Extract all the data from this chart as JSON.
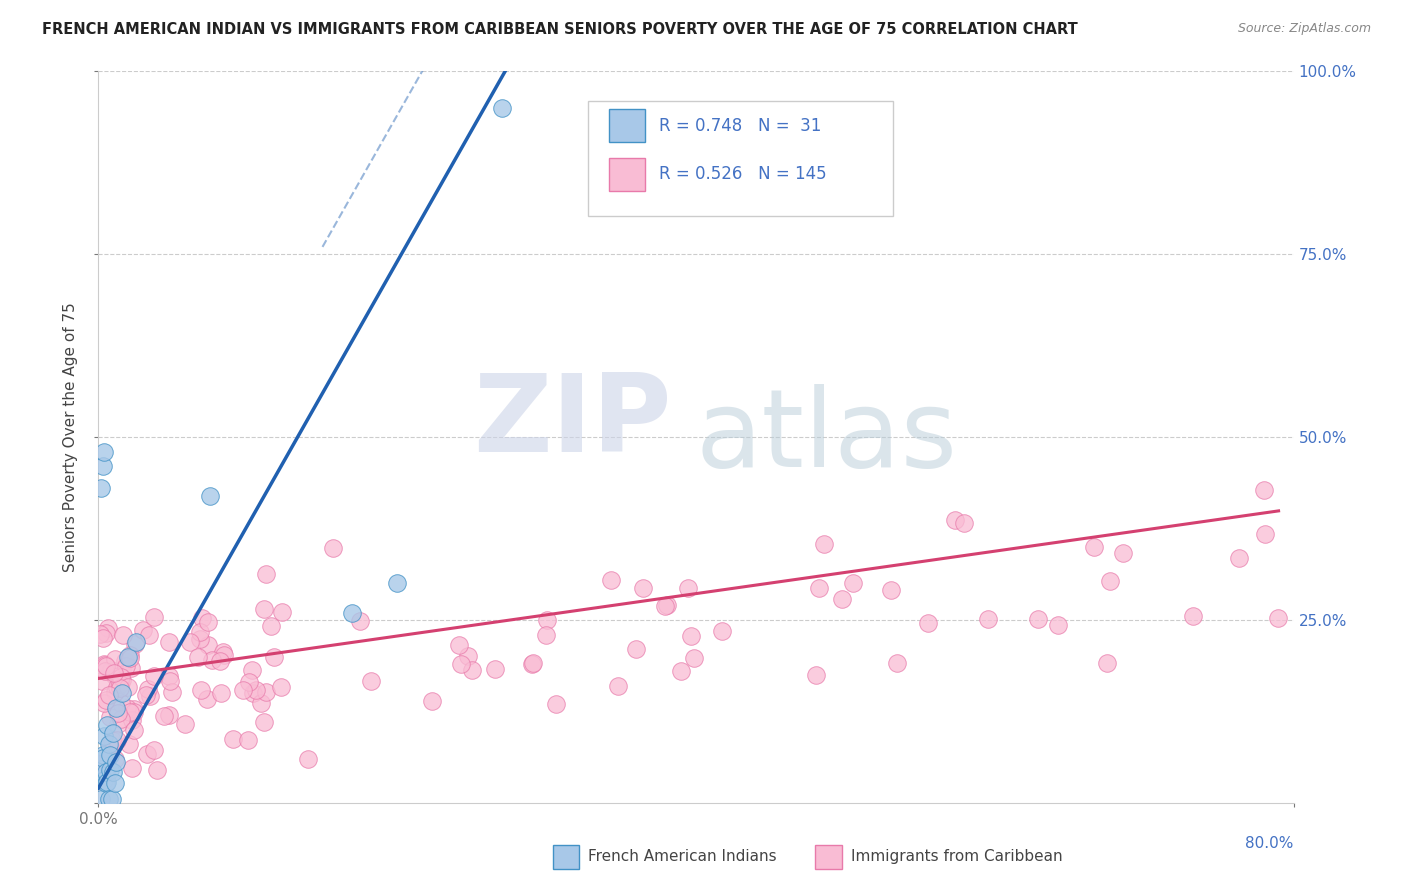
{
  "title": "FRENCH AMERICAN INDIAN VS IMMIGRANTS FROM CARIBBEAN SENIORS POVERTY OVER THE AGE OF 75 CORRELATION CHART",
  "source": "Source: ZipAtlas.com",
  "ylabel": "Seniors Poverty Over the Age of 75",
  "blue_R": 0.748,
  "blue_N": 31,
  "pink_R": 0.526,
  "pink_N": 145,
  "blue_color": "#a8c8e8",
  "blue_edge": "#4292c6",
  "pink_color": "#f9bcd4",
  "pink_edge": "#e87aaa",
  "blue_line_color": "#2060b0",
  "pink_line_color": "#d44070",
  "legend_label_blue": "French American Indians",
  "legend_label_pink": "Immigrants from Caribbean",
  "xmin": 0.0,
  "xmax": 0.8,
  "ymin": 0.0,
  "ymax": 1.0,
  "blue_slope": 3.6,
  "blue_intercept": 0.02,
  "pink_slope": 0.195,
  "pink_intercept": 0.155,
  "watermark_zip_color": "#d0d8f0",
  "watermark_atlas_color": "#c0d0e0"
}
